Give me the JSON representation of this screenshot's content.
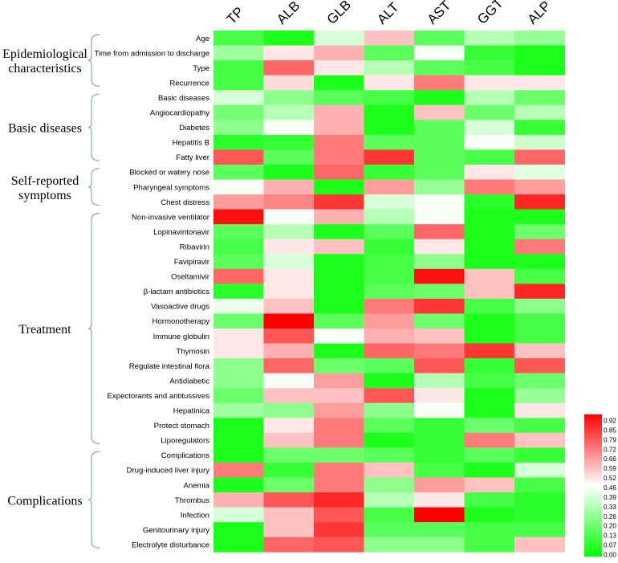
{
  "chart_data": {
    "type": "heatmap",
    "columns": [
      "TP",
      "ALB",
      "GLB",
      "ALT",
      "AST",
      "GGT",
      "ALP"
    ],
    "rows": [
      "Age",
      "Time from admission to discharge",
      "Type",
      "Recurrence",
      "Basic diseases",
      "Angiocardiopathy",
      "Diabetes",
      "Hepatitis B",
      "Fatty liver",
      "Blocked or watery nose",
      "Pharyngeal symptoms",
      "Chest distress",
      "Non-invasive ventilator",
      "Lopinaviritonavir",
      "Ribavirin",
      "Favipiravir",
      "Oseltamivir",
      "β-lactam antibiotics",
      "Vasoactive drugs",
      "Hormonotherapy",
      "Immune globulin",
      "Thymosin",
      "Regulate intestinal flora",
      "Antidiabetic",
      "Expectorants and antitussives",
      "Hepatinica",
      "Protect stomach",
      "Liporegulators",
      "Complications",
      "Drug-induced liver injury",
      "Anemia",
      "Thrombus",
      "Infection",
      "Genitourinary injury",
      "Electrolyte disturbance"
    ],
    "values": [
      [
        0.13,
        0.05,
        0.4,
        0.59,
        0.17,
        0.34,
        0.28
      ],
      [
        0.3,
        0.52,
        0.62,
        0.17,
        0.46,
        0.1,
        0.05
      ],
      [
        0.13,
        0.76,
        0.52,
        0.34,
        0.17,
        0.13,
        0.05
      ],
      [
        0.13,
        0.54,
        0.05,
        0.52,
        0.72,
        0.52,
        0.52
      ],
      [
        0.4,
        0.26,
        0.17,
        0.13,
        0.05,
        0.34,
        0.2
      ],
      [
        0.22,
        0.34,
        0.62,
        0.05,
        0.59,
        0.2,
        0.34
      ],
      [
        0.26,
        0.46,
        0.62,
        0.05,
        0.17,
        0.4,
        0.1
      ],
      [
        0.08,
        0.1,
        0.72,
        0.17,
        0.17,
        0.46,
        0.38
      ],
      [
        0.79,
        0.17,
        0.72,
        0.85,
        0.17,
        0.13,
        0.76
      ],
      [
        0.17,
        0.05,
        0.76,
        0.1,
        0.17,
        0.52,
        0.42
      ],
      [
        0.46,
        0.62,
        0.05,
        0.66,
        0.28,
        0.72,
        0.66
      ],
      [
        0.66,
        0.7,
        0.85,
        0.4,
        0.46,
        0.08,
        0.88
      ],
      [
        0.92,
        0.46,
        0.62,
        0.34,
        0.46,
        0.05,
        0.05
      ],
      [
        0.17,
        0.34,
        0.05,
        0.17,
        0.76,
        0.05,
        0.2
      ],
      [
        0.13,
        0.52,
        0.59,
        0.1,
        0.52,
        0.05,
        0.72
      ],
      [
        0.17,
        0.4,
        0.05,
        0.13,
        0.26,
        0.05,
        0.05
      ],
      [
        0.76,
        0.52,
        0.05,
        0.13,
        0.92,
        0.59,
        0.13
      ],
      [
        0.08,
        0.52,
        0.05,
        0.17,
        0.2,
        0.59,
        0.88
      ],
      [
        0.44,
        0.59,
        0.05,
        0.72,
        0.85,
        0.13,
        0.26
      ],
      [
        0.2,
        0.95,
        0.17,
        0.66,
        0.2,
        0.05,
        0.13
      ],
      [
        0.52,
        0.79,
        0.46,
        0.62,
        0.59,
        0.05,
        0.13
      ],
      [
        0.52,
        0.62,
        0.05,
        0.76,
        0.72,
        0.85,
        0.59
      ],
      [
        0.26,
        0.76,
        0.2,
        0.17,
        0.79,
        0.1,
        0.79
      ],
      [
        0.26,
        0.46,
        0.66,
        0.05,
        0.34,
        0.13,
        0.2
      ],
      [
        0.2,
        0.59,
        0.59,
        0.79,
        0.52,
        0.05,
        0.28
      ],
      [
        0.3,
        0.26,
        0.66,
        0.26,
        0.46,
        0.05,
        0.52
      ],
      [
        0.05,
        0.52,
        0.72,
        0.17,
        0.1,
        0.2,
        0.13
      ],
      [
        0.05,
        0.59,
        0.72,
        0.05,
        0.1,
        0.72,
        0.59
      ],
      [
        0.05,
        0.2,
        0.2,
        0.17,
        0.1,
        0.17,
        0.1
      ],
      [
        0.72,
        0.1,
        0.72,
        0.59,
        0.13,
        0.05,
        0.4
      ],
      [
        0.05,
        0.2,
        0.72,
        0.26,
        0.66,
        0.59,
        0.13
      ],
      [
        0.62,
        0.79,
        0.88,
        0.34,
        0.52,
        0.13,
        0.08
      ],
      [
        0.4,
        0.59,
        0.79,
        0.13,
        0.95,
        0.05,
        0.08
      ],
      [
        0.05,
        0.59,
        0.85,
        0.17,
        0.17,
        0.13,
        0.13
      ],
      [
        0.05,
        0.76,
        0.79,
        0.26,
        0.26,
        0.13,
        0.59
      ]
    ],
    "groups": [
      {
        "label_lines": [
          "Epidemiological",
          "characteristics"
        ],
        "rows": [
          0,
          3
        ]
      },
      {
        "label_lines": [
          "Basic diseases"
        ],
        "rows": [
          4,
          8
        ]
      },
      {
        "label_lines": [
          "Self-reported",
          "symptoms"
        ],
        "rows": [
          9,
          11
        ]
      },
      {
        "label_lines": [
          "Treatment"
        ],
        "rows": [
          12,
          27
        ]
      },
      {
        "label_lines": [
          "Complications"
        ],
        "rows": [
          28,
          34
        ]
      }
    ],
    "legend": {
      "ticks": [
        "0.92",
        "0.85",
        "0.79",
        "0.72",
        "0.66",
        "0.59",
        "0.52",
        "0.46",
        "0.39",
        "0.33",
        "0.26",
        "0.20",
        "0.13",
        "0.07",
        "0.00"
      ],
      "min": 0.0,
      "max": 0.95,
      "position": "bottom-right"
    },
    "colors": {
      "low": "#00ff00",
      "mid": "#ffffff",
      "high": "#ff0000",
      "bracket": "#8aa2cc",
      "label": "#000000"
    }
  }
}
